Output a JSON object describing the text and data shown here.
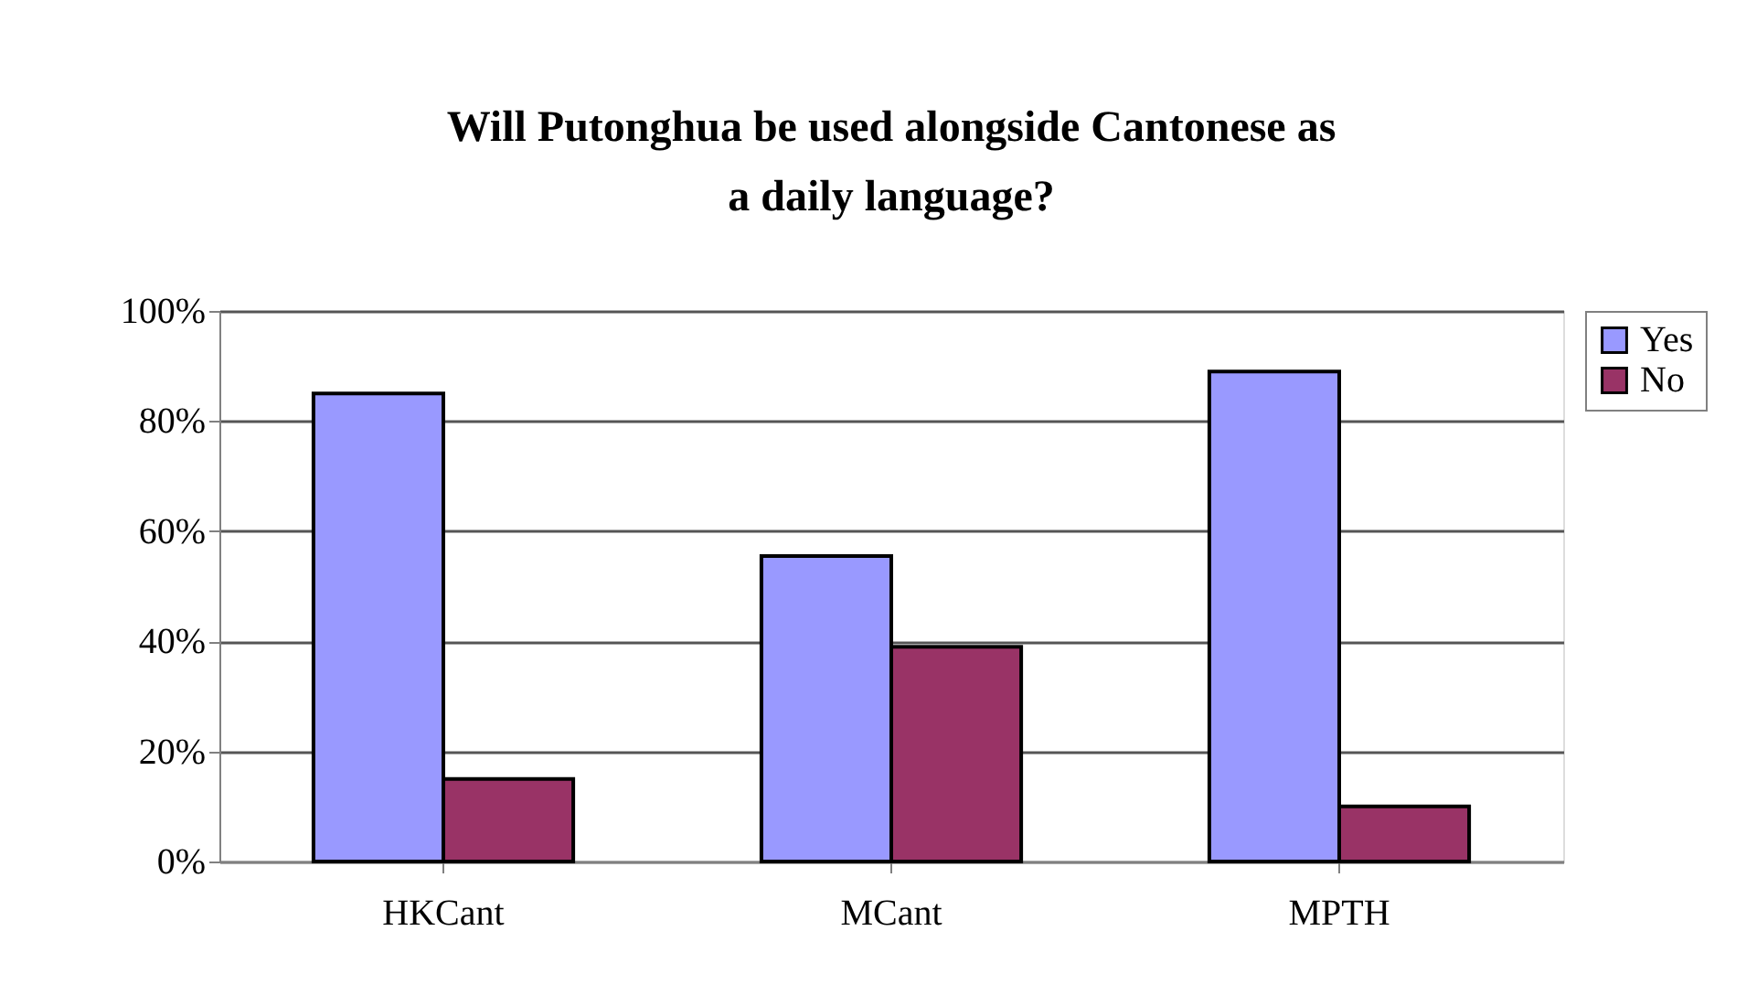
{
  "chart_data": {
    "type": "bar",
    "title": [
      "Will Putonghua be used alongside Cantonese as",
      "a daily language?"
    ],
    "categories": [
      "HKCant",
      "MCant",
      "MPTH"
    ],
    "series": [
      {
        "name": "Yes",
        "color": "#9999ff",
        "values": [
          85,
          55.5,
          89
        ]
      },
      {
        "name": "No",
        "color": "#993366",
        "values": [
          15,
          39,
          10
        ]
      }
    ],
    "ylim": [
      0,
      100
    ],
    "yticks": [
      {
        "value": 0,
        "label": "0%"
      },
      {
        "value": 20,
        "label": "20%"
      },
      {
        "value": 40,
        "label": "40%"
      },
      {
        "value": 60,
        "label": "60%"
      },
      {
        "value": 80,
        "label": "80%"
      },
      {
        "value": 100,
        "label": "100%"
      }
    ],
    "grid": "y",
    "legend": "right"
  }
}
